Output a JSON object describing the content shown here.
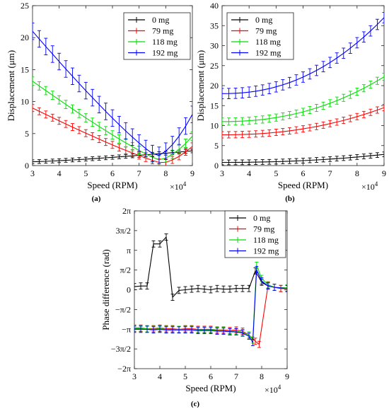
{
  "chart_data": [
    {
      "type": "line",
      "panel_label": "(a)",
      "xlabel": "Speed (RPM)",
      "ylabel": "Displacement (μm)",
      "x_multiplier": "×10",
      "x_multiplier_exp": "4",
      "xlim": [
        3,
        9
      ],
      "ylim": [
        0,
        25
      ],
      "xticks": [
        "3",
        "4",
        "5",
        "6",
        "7",
        "8",
        "9"
      ],
      "yticks": [
        "0",
        "5",
        "10",
        "15",
        "20",
        "25"
      ],
      "legend": "top-right",
      "series": [
        {
          "name": "0 mg",
          "color": "#000000",
          "x": [
            3,
            9
          ],
          "y": [
            0.6,
            2.3
          ],
          "err": 0.3,
          "shape": "rising",
          "dip": 0
        },
        {
          "name": "79 mg",
          "color": "#ff0000",
          "x": [
            3,
            9
          ],
          "y": [
            9.0,
            3.0
          ],
          "err": 0.55,
          "shape": "valley",
          "min_x": 7.85,
          "min_y": 0.4
        },
        {
          "name": "118 mg",
          "color": "#00dd00",
          "x": [
            3,
            9
          ],
          "y": [
            13.2,
            4.6
          ],
          "err": 0.65,
          "shape": "valley",
          "min_x": 7.75,
          "min_y": 0.9
        },
        {
          "name": "192 mg",
          "color": "#0000ff",
          "x": [
            3,
            9
          ],
          "y": [
            21.0,
            8.0
          ],
          "err": 1.3,
          "shape": "valley",
          "min_x": 7.65,
          "min_y": 1.5
        }
      ]
    },
    {
      "type": "line",
      "panel_label": "(b)",
      "xlabel": "Speed (RPM)",
      "ylabel": "Displacement (μm)",
      "x_multiplier": "×10",
      "x_multiplier_exp": "4",
      "xlim": [
        3,
        9
      ],
      "ylim": [
        0,
        40
      ],
      "xticks": [
        "3",
        "4",
        "5",
        "6",
        "7",
        "8",
        "9"
      ],
      "yticks": [
        "0",
        "5",
        "10",
        "15",
        "20",
        "25",
        "30",
        "35",
        "40"
      ],
      "legend": "top-left",
      "series": [
        {
          "name": "0 mg",
          "color": "#000000",
          "x": [
            3,
            9
          ],
          "y": [
            0.8,
            2.8
          ],
          "err": 0.6
        },
        {
          "name": "79 mg",
          "color": "#ff0000",
          "x": [
            3,
            9
          ],
          "y": [
            7.7,
            14.5
          ],
          "err": 0.8
        },
        {
          "name": "118 mg",
          "color": "#00dd00",
          "x": [
            3,
            9
          ],
          "y": [
            11.0,
            22.2
          ],
          "err": 0.9
        },
        {
          "name": "192 mg",
          "color": "#0000ff",
          "x": [
            3,
            9
          ],
          "y": [
            18.0,
            37.0
          ],
          "err": 1.3
        }
      ]
    },
    {
      "type": "line",
      "panel_label": "(c)",
      "xlabel": "Speed (RPM)",
      "ylabel": "Phase difference (rad)",
      "x_multiplier": "×10",
      "x_multiplier_exp": "4",
      "xlim": [
        3,
        9
      ],
      "ylim": [
        -6.2832,
        6.2832
      ],
      "xticks": [
        "3",
        "4",
        "5",
        "6",
        "7",
        "8",
        "9"
      ],
      "yticks": [
        "−2π",
        "−3π/2",
        "−π",
        "−π/2",
        "0",
        "π/2",
        "π",
        "3π/2",
        "2π"
      ],
      "legend": "top-right",
      "series": [
        {
          "name": "0 mg",
          "color": "#000000",
          "x": [
            3.0,
            3.25,
            3.5,
            3.75,
            4.0,
            4.25,
            4.5,
            4.75,
            5.0,
            5.25,
            5.5,
            5.75,
            6.0,
            6.25,
            6.5,
            6.75,
            7.0,
            7.25,
            7.5,
            7.75,
            8.0,
            8.25,
            8.5,
            8.75,
            9.0
          ],
          "y": [
            0.25,
            0.3,
            0.3,
            3.65,
            3.65,
            4.2,
            -0.6,
            -0.05,
            0.0,
            0.05,
            0.1,
            0.05,
            0.0,
            0.1,
            0.05,
            0.05,
            0.1,
            0.1,
            0.1,
            1.5,
            0.6,
            0.3,
            0.2,
            0.1,
            0.1
          ]
        },
        {
          "name": "79 mg",
          "color": "#ff0000",
          "x": [
            3.0,
            3.25,
            3.5,
            3.75,
            4.0,
            4.25,
            4.5,
            4.75,
            5.0,
            5.25,
            5.5,
            5.75,
            6.0,
            6.25,
            6.5,
            6.75,
            7.0,
            7.25,
            7.5,
            7.75,
            7.9,
            8.25,
            8.5,
            8.75,
            9.0
          ],
          "y": [
            -3.05,
            -3.05,
            -3.1,
            -3.1,
            -3.05,
            -3.1,
            -3.1,
            -3.15,
            -3.1,
            -3.1,
            -3.15,
            -3.15,
            -3.15,
            -3.2,
            -3.2,
            -3.25,
            -3.2,
            -3.3,
            -3.6,
            -4.1,
            -4.35,
            0.35,
            0.2,
            0.1,
            0.1
          ]
        },
        {
          "name": "118 mg",
          "color": "#00dd00",
          "x": [
            3.0,
            3.25,
            3.5,
            3.75,
            4.0,
            4.25,
            4.5,
            4.75,
            5.0,
            5.25,
            5.5,
            5.75,
            6.0,
            6.25,
            6.5,
            6.75,
            7.0,
            7.25,
            7.5,
            7.65,
            7.8,
            8.0,
            8.25,
            8.5,
            9.0
          ],
          "y": [
            -3.1,
            -3.1,
            -3.1,
            -3.15,
            -3.1,
            -3.15,
            -3.15,
            -3.15,
            -3.15,
            -3.15,
            -3.2,
            -3.2,
            -3.2,
            -3.25,
            -3.25,
            -3.3,
            -3.3,
            -3.4,
            -3.6,
            -4.0,
            1.95,
            0.9,
            0.4,
            0.2,
            0.15
          ]
        },
        {
          "name": "192 mg",
          "color": "#0000ff",
          "x": [
            3.0,
            3.25,
            3.5,
            3.75,
            4.0,
            4.25,
            4.5,
            4.75,
            5.0,
            5.25,
            5.5,
            5.75,
            6.0,
            6.25,
            6.5,
            6.75,
            7.0,
            7.25,
            7.5,
            7.65,
            7.8,
            8.0,
            8.25,
            8.5,
            9.0
          ],
          "y": [
            -3.15,
            -3.15,
            -3.15,
            -3.2,
            -3.15,
            -3.2,
            -3.2,
            -3.2,
            -3.2,
            -3.2,
            -3.25,
            -3.25,
            -3.25,
            -3.3,
            -3.3,
            -3.35,
            -3.35,
            -3.45,
            -3.7,
            -4.2,
            1.6,
            0.7,
            0.3,
            0.2,
            0.1
          ]
        }
      ]
    }
  ]
}
